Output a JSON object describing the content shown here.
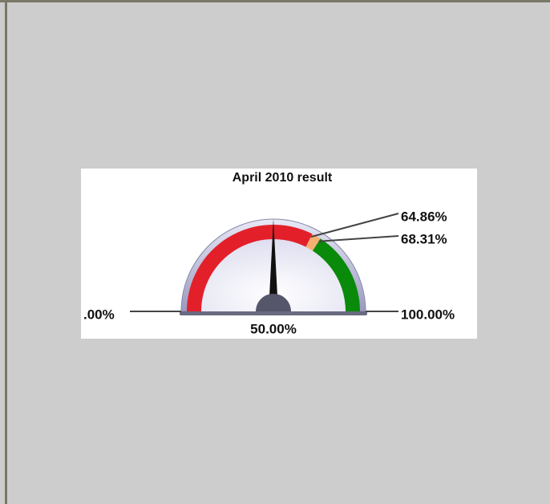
{
  "chart_data": {
    "type": "gauge",
    "title": "April 2010 result",
    "value": 50,
    "value_label": "50.00%",
    "xlim": [
      0,
      100
    ],
    "xticks": [
      {
        "value": 0,
        "label": ".00%"
      },
      {
        "value": 100,
        "label": "100.00%"
      }
    ],
    "thresholds": [
      {
        "value": 64.86,
        "label": "64.86%"
      },
      {
        "value": 68.31,
        "label": "68.31%"
      }
    ],
    "band_colors": [
      "#e3202a",
      "#f4b070",
      "#0a8a0a"
    ],
    "needle_color": "#111111"
  }
}
